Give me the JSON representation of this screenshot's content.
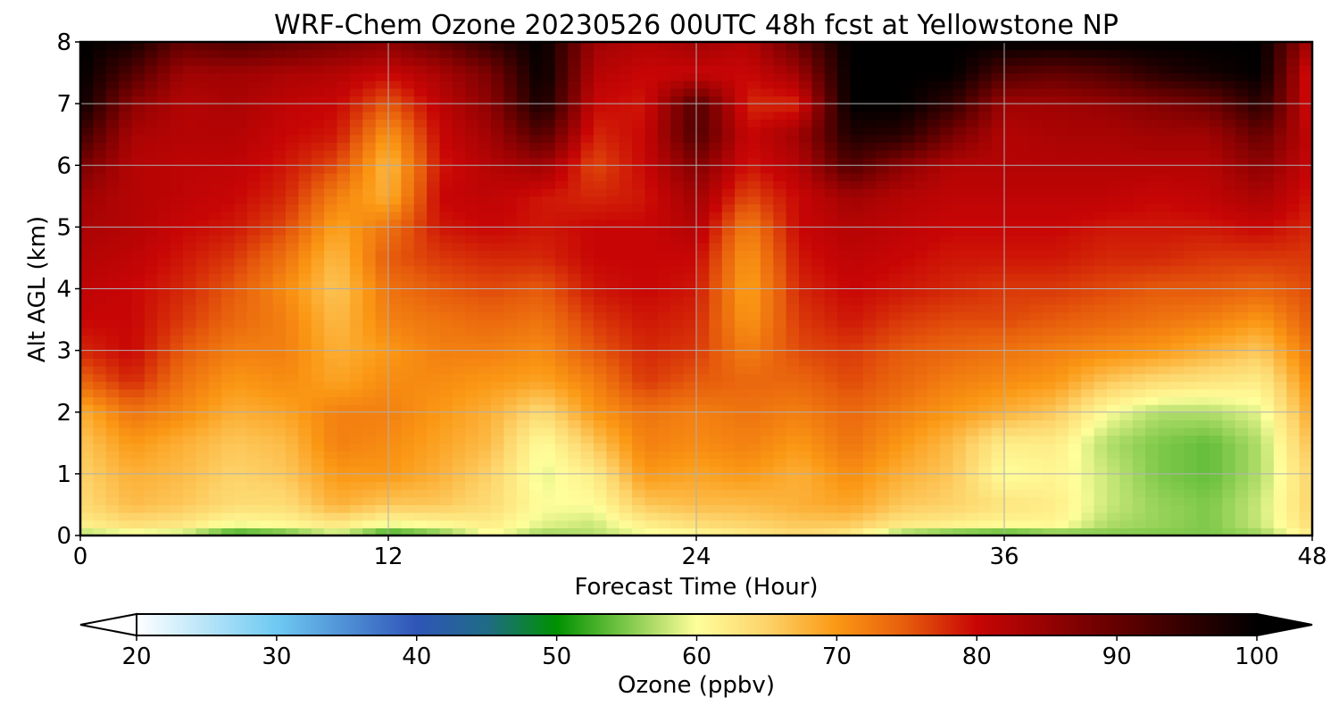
{
  "chart_data": {
    "type": "heatmap",
    "title": "WRF-Chem Ozone  20230526 00UTC 48h fcst at Yellowstone NP",
    "xlabel": "Forecast Time (Hour)",
    "ylabel": "Alt AGL (km)",
    "xlim": [
      0,
      48
    ],
    "ylim": [
      0,
      8
    ],
    "x_ticks": [
      0,
      12,
      24,
      36,
      48
    ],
    "y_ticks": [
      0,
      1,
      2,
      3,
      4,
      5,
      6,
      7,
      8
    ],
    "grid": true,
    "x": [
      0,
      2,
      4,
      6,
      8,
      10,
      12,
      14,
      16,
      18,
      20,
      22,
      24,
      26,
      28,
      30,
      32,
      34,
      36,
      38,
      40,
      42,
      44,
      46,
      48
    ],
    "y": [
      0,
      0.2,
      0.5,
      1,
      1.5,
      2,
      2.5,
      3,
      3.5,
      4,
      4.5,
      5,
      5.5,
      6,
      6.5,
      7,
      7.5,
      8
    ],
    "z_units": "ppbv",
    "z": [
      [
        56,
        58,
        57,
        51,
        53,
        57,
        51,
        54,
        60,
        56,
        57,
        59,
        60,
        62,
        64,
        62,
        55,
        53,
        52,
        54,
        55,
        55,
        55,
        56,
        62
      ],
      [
        62,
        64,
        63,
        60,
        61,
        63,
        60,
        61,
        62,
        59,
        58,
        62,
        64,
        65,
        66,
        66,
        63,
        62,
        61,
        61,
        57,
        56,
        55,
        58,
        64
      ],
      [
        64,
        67,
        66,
        64,
        64,
        68,
        66,
        66,
        64,
        60,
        60,
        66,
        67,
        67,
        68,
        69,
        66,
        65,
        63,
        62,
        58,
        56,
        55,
        58,
        65
      ],
      [
        65,
        68,
        67,
        65,
        66,
        70,
        70,
        68,
        65,
        59,
        62,
        70,
        69,
        70,
        68,
        71,
        68,
        66,
        60,
        61,
        58,
        55,
        54,
        57,
        65
      ],
      [
        66,
        70,
        68,
        66,
        67,
        72,
        71,
        69,
        67,
        60,
        66,
        72,
        71,
        72,
        70,
        73,
        70,
        67,
        62,
        62,
        57,
        55,
        54,
        57,
        67
      ],
      [
        68,
        73,
        71,
        68,
        69,
        72,
        72,
        70,
        68,
        64,
        70,
        73,
        72,
        73,
        72,
        74,
        72,
        70,
        68,
        66,
        60,
        57,
        57,
        59,
        69
      ],
      [
        74,
        78,
        73,
        70,
        71,
        69,
        71,
        71,
        70,
        69,
        72,
        77,
        75,
        74,
        74,
        76,
        74,
        72,
        71,
        70,
        66,
        64,
        63,
        62,
        71
      ],
      [
        78,
        80,
        75,
        72,
        72,
        68,
        70,
        72,
        72,
        71,
        75,
        78,
        77,
        72,
        76,
        77,
        75,
        74,
        73,
        72,
        71,
        70,
        68,
        66,
        73
      ],
      [
        80,
        80,
        77,
        74,
        72,
        67,
        72,
        73,
        74,
        73,
        77,
        79,
        78,
        70,
        77,
        79,
        77,
        76,
        76,
        75,
        74,
        73,
        72,
        70,
        75
      ],
      [
        81,
        80,
        78,
        75,
        71,
        66,
        73,
        75,
        76,
        75,
        79,
        80,
        79,
        69,
        78,
        80,
        79,
        78,
        77,
        77,
        76,
        75,
        75,
        74,
        76
      ],
      [
        82,
        81,
        79,
        77,
        73,
        67,
        75,
        77,
        78,
        78,
        80,
        80,
        80,
        70,
        79,
        81,
        80,
        79,
        79,
        79,
        78,
        78,
        77,
        77,
        77
      ],
      [
        83,
        82,
        80,
        79,
        76,
        69,
        73,
        79,
        80,
        79,
        80,
        80,
        82,
        72,
        80,
        82,
        81,
        80,
        80,
        80,
        79,
        79,
        79,
        80,
        78
      ],
      [
        84,
        82,
        81,
        80,
        78,
        72,
        68,
        80,
        81,
        79,
        78,
        79,
        84,
        76,
        80,
        84,
        82,
        81,
        81,
        81,
        81,
        80,
        81,
        83,
        79
      ],
      [
        88,
        82,
        81,
        81,
        79,
        76,
        67,
        79,
        82,
        84,
        76,
        80,
        87,
        79,
        82,
        92,
        86,
        82,
        82,
        82,
        82,
        82,
        82,
        86,
        80
      ],
      [
        94,
        83,
        82,
        82,
        80,
        79,
        70,
        80,
        84,
        92,
        78,
        80,
        92,
        80,
        84,
        97,
        96,
        88,
        82,
        83,
        83,
        84,
        84,
        90,
        80
      ],
      [
        99,
        86,
        82,
        83,
        81,
        80,
        75,
        81,
        86,
        98,
        80,
        79,
        92,
        78,
        78,
        100,
        100,
        95,
        84,
        84,
        85,
        87,
        89,
        96,
        78
      ],
      [
        100,
        92,
        84,
        84,
        83,
        82,
        80,
        83,
        88,
        100,
        82,
        80,
        80,
        80,
        84,
        100,
        100,
        100,
        92,
        90,
        92,
        96,
        98,
        100,
        77
      ],
      [
        100,
        98,
        90,
        92,
        90,
        88,
        86,
        90,
        95,
        100,
        84,
        82,
        84,
        82,
        90,
        100,
        100,
        100,
        100,
        100,
        100,
        100,
        100,
        100,
        82
      ]
    ],
    "colorbar": {
      "label": "Ozone  (ppbv)",
      "min": 20,
      "max": 100,
      "ticks": [
        20,
        30,
        40,
        50,
        60,
        70,
        80,
        90,
        100
      ],
      "extend": "both",
      "colors": [
        {
          "v": 20,
          "c": "#ffffff"
        },
        {
          "v": 30,
          "c": "#6ec9f2"
        },
        {
          "v": 40,
          "c": "#2f55b8"
        },
        {
          "v": 45,
          "c": "#1f6b86"
        },
        {
          "v": 50,
          "c": "#009100"
        },
        {
          "v": 55,
          "c": "#7ec84a"
        },
        {
          "v": 60,
          "c": "#fefe9b"
        },
        {
          "v": 65,
          "c": "#fdd36a"
        },
        {
          "v": 70,
          "c": "#fb9814"
        },
        {
          "v": 75,
          "c": "#e65b0c"
        },
        {
          "v": 80,
          "c": "#c80505"
        },
        {
          "v": 90,
          "c": "#640000"
        },
        {
          "v": 100,
          "c": "#000000"
        }
      ]
    }
  }
}
